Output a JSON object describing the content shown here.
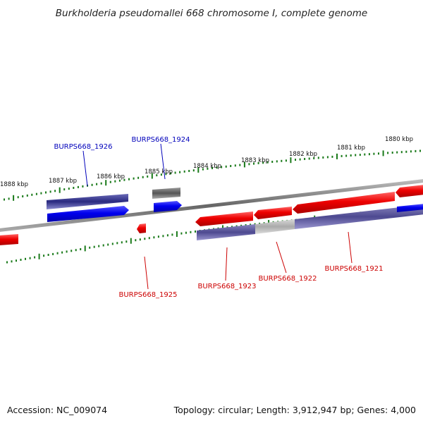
{
  "title": "Burkholderia pseudomallei 668 chromosome I, complete genome",
  "footer": {
    "accession": "Accession: NC_009074",
    "topology": "Topology: circular; Length: 3,912,947 bp; Genes: 4,000"
  },
  "colors": {
    "forward_strand": "#0000ee",
    "reverse_strand": "#ee0000",
    "label_forward": "#0000bb",
    "label_reverse": "#cc0000",
    "tick": "#1a7a1a",
    "backbone": "#888888"
  },
  "ticks": [
    {
      "label": "1888 kbp"
    },
    {
      "label": "1887 kbp"
    },
    {
      "label": "1886 kbp"
    },
    {
      "label": "1885 kbp"
    },
    {
      "label": "1884 kbp"
    },
    {
      "label": "1883 kbp"
    },
    {
      "label": "1882 kbp"
    },
    {
      "label": "1881 kbp"
    },
    {
      "label": "1880 kbp"
    }
  ],
  "genes": [
    {
      "name": "BURPS668_1926",
      "strand": "forward"
    },
    {
      "name": "BURPS668_1924",
      "strand": "forward"
    },
    {
      "name": "BURPS668_1925",
      "strand": "reverse"
    },
    {
      "name": "BURPS668_1923",
      "strand": "reverse"
    },
    {
      "name": "BURPS668_1922",
      "strand": "reverse"
    },
    {
      "name": "BURPS668_1921",
      "strand": "reverse"
    }
  ]
}
